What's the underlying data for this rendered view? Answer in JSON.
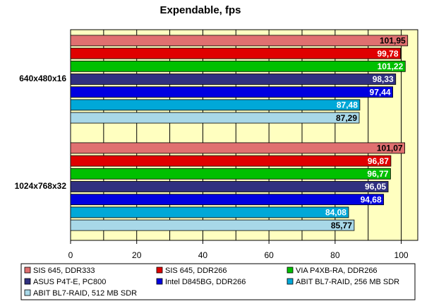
{
  "chart_data": {
    "type": "hbar",
    "title": "Expendable, fps",
    "categories": [
      "640x480x16",
      "1024x768x32"
    ],
    "xlim": [
      0,
      105
    ],
    "xticks": [
      0,
      20,
      40,
      60,
      80,
      100
    ],
    "xminorticks": [
      10,
      30,
      50,
      70,
      90
    ],
    "grid": true,
    "series": [
      {
        "name": "SIS 645, DDR333",
        "color": "#e07070",
        "values": [
          101.95,
          101.07
        ],
        "value_labels": [
          "101,95",
          "101,07"
        ]
      },
      {
        "name": "SIS 645, DDR266",
        "color": "#e00000",
        "values": [
          99.78,
          96.87
        ],
        "value_labels": [
          "99,78",
          "96,87"
        ]
      },
      {
        "name": "VIA P4XB-RA, DDR266",
        "color": "#00c000",
        "values": [
          101.22,
          96.77
        ],
        "value_labels": [
          "101,22",
          "96,77"
        ]
      },
      {
        "name": "ASUS P4T-E, PC800",
        "color": "#303080",
        "values": [
          98.33,
          96.05
        ],
        "value_labels": [
          "98,33",
          "96,05"
        ]
      },
      {
        "name": "Intel D845BG, DDR266",
        "color": "#0000e0",
        "values": [
          97.44,
          94.68
        ],
        "value_labels": [
          "97,44",
          "94,68"
        ]
      },
      {
        "name": "ABIT BL7-RAID, 256 MB SDR",
        "color": "#00a8d8",
        "values": [
          87.48,
          84.08
        ],
        "value_labels": [
          "87,48",
          "84,08"
        ]
      },
      {
        "name": "ABIT BL7-RAID, 512 MB SDR",
        "color": "#a8d8e8",
        "values": [
          87.29,
          85.77
        ],
        "value_labels": [
          "87,29",
          "85,77"
        ]
      }
    ]
  }
}
